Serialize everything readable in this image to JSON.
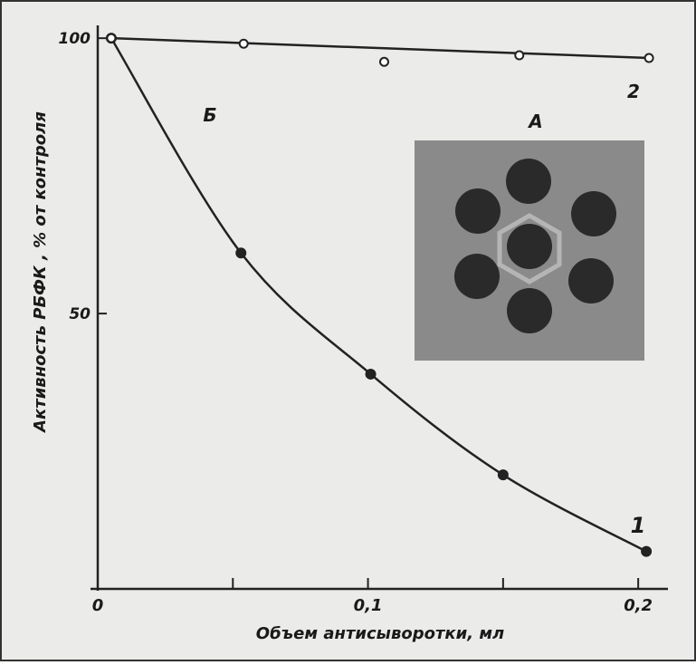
{
  "chart_data": {
    "type": "line",
    "xlabel": "Объем антисыворотки, мл",
    "ylabel": "Активность РБФК , % от контроля",
    "xlim": [
      0,
      0.21
    ],
    "ylim": [
      0,
      102
    ],
    "xticks": [
      0,
      {
        "value": 0.1,
        "label": "0,1"
      },
      {
        "value": 0.2,
        "label": "0,2"
      }
    ],
    "xminorticks": [
      0.05,
      0.15
    ],
    "yticks": [
      50,
      100
    ],
    "annotations": [
      "1",
      "2",
      "Б",
      "А"
    ],
    "series": [
      {
        "name": "1",
        "color": "#222222",
        "marker": "filled",
        "x": [
          0.005,
          0.053,
          0.101,
          0.15,
          0.203
        ],
        "values": [
          100,
          61,
          39,
          20.7,
          6.8
        ]
      },
      {
        "name": "2",
        "color": "#222222",
        "marker": "open",
        "x": [
          0.005,
          0.054,
          0.106,
          0.156,
          0.204
        ],
        "values": [
          100,
          99,
          95.7,
          96.9,
          96.4
        ]
      }
    ]
  }
}
